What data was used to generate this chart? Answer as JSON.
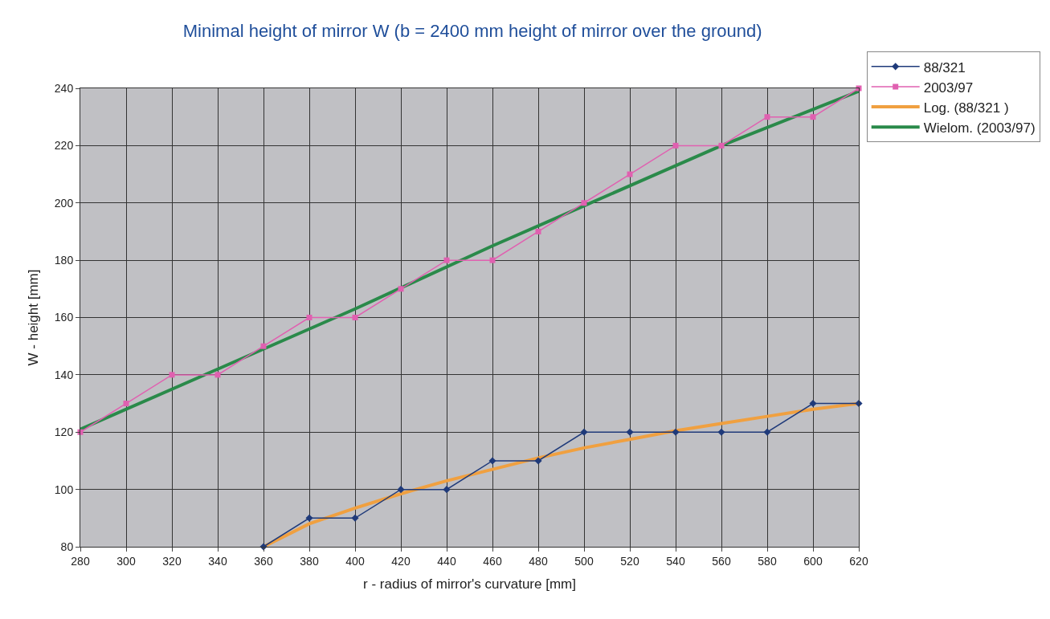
{
  "chart_data": {
    "type": "line",
    "title": "Minimal height of mirror W (b = 2400 mm height of mirror over the ground)",
    "xlabel": "r - radius of mirror's curvature [mm]",
    "ylabel": "W - height [mm]",
    "x": [
      280,
      300,
      320,
      340,
      360,
      380,
      400,
      420,
      440,
      460,
      480,
      500,
      520,
      540,
      560,
      580,
      600,
      620
    ],
    "series": [
      {
        "name": "88/321",
        "color": "#1f3a7a",
        "marker": "diamond",
        "values": [
          null,
          null,
          null,
          null,
          80,
          90,
          90,
          100,
          100,
          110,
          110,
          120,
          120,
          120,
          120,
          120,
          130,
          130
        ]
      },
      {
        "name": "2003/97",
        "color": "#e060b0",
        "marker": "square",
        "values": [
          120,
          130,
          140,
          140,
          150,
          160,
          160,
          170,
          180,
          180,
          190,
          200,
          210,
          220,
          220,
          230,
          230,
          240
        ]
      },
      {
        "name": "Log. (88/321 )",
        "color": "#f0a040",
        "marker": "none",
        "x": [
          360,
          380,
          400,
          420,
          440,
          460,
          480,
          500,
          520,
          540,
          560,
          580,
          600,
          620
        ],
        "values": [
          80,
          88,
          93.5,
          98.5,
          103,
          107,
          111,
          114.5,
          117.5,
          120.5,
          123,
          125.5,
          128,
          130
        ]
      },
      {
        "name": "Wielom. (2003/97)",
        "color": "#2a8a4a",
        "marker": "none",
        "x": [
          280,
          340,
          400,
          460,
          500,
          560,
          620
        ],
        "values": [
          121,
          142,
          163,
          185,
          199,
          220,
          239
        ]
      }
    ],
    "xlim": [
      280,
      620
    ],
    "xticks": [
      280,
      300,
      320,
      340,
      360,
      380,
      400,
      420,
      440,
      460,
      480,
      500,
      520,
      540,
      560,
      580,
      600,
      620
    ],
    "ylim": [
      80,
      240
    ],
    "yticks": [
      80,
      100,
      120,
      140,
      160,
      180,
      200,
      220,
      240
    ],
    "grid": true,
    "legend": "top right",
    "line_style": "solid"
  }
}
